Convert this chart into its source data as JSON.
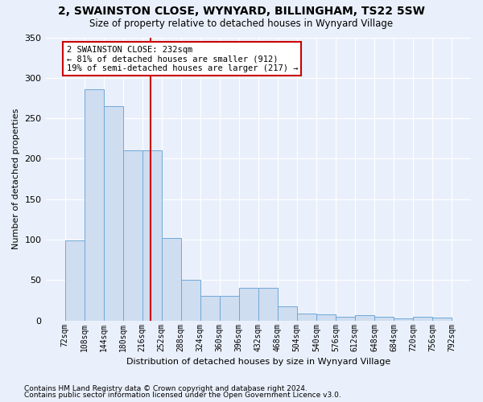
{
  "title1": "2, SWAINSTON CLOSE, WYNYARD, BILLINGHAM, TS22 5SW",
  "title2": "Size of property relative to detached houses in Wynyard Village",
  "xlabel": "Distribution of detached houses by size in Wynyard Village",
  "ylabel": "Number of detached properties",
  "footnote1": "Contains HM Land Registry data © Crown copyright and database right 2024.",
  "footnote2": "Contains public sector information licensed under the Open Government Licence v3.0.",
  "annotation_title": "2 SWAINSTON CLOSE: 232sqm",
  "annotation_line1": "← 81% of detached houses are smaller (912)",
  "annotation_line2": "19% of semi-detached houses are larger (217) →",
  "bar_color": "#cfddf0",
  "bar_edge_color": "#6fa8d8",
  "vline_color": "#cc0000",
  "vline_x": 232,
  "bin_edges": [
    72,
    108,
    144,
    180,
    216,
    252,
    288,
    324,
    360,
    396,
    432,
    468,
    504,
    540,
    576,
    612,
    648,
    684,
    720,
    756,
    792
  ],
  "bar_heights": [
    99,
    286,
    265,
    210,
    210,
    102,
    50,
    30,
    30,
    40,
    40,
    18,
    9,
    8,
    5,
    7,
    5,
    3,
    5,
    4
  ],
  "ylim": [
    0,
    350
  ],
  "yticks": [
    0,
    50,
    100,
    150,
    200,
    250,
    300,
    350
  ],
  "bg_color": "#eaf0fb",
  "plot_bg_color": "#eaf0fb",
  "grid_color": "#ffffff",
  "title_fontsize": 10,
  "subtitle_fontsize": 8.5,
  "xlabel_fontsize": 8,
  "ylabel_fontsize": 8,
  "tick_fontsize": 7,
  "annot_fontsize": 7.5,
  "footnote_fontsize": 6.5
}
